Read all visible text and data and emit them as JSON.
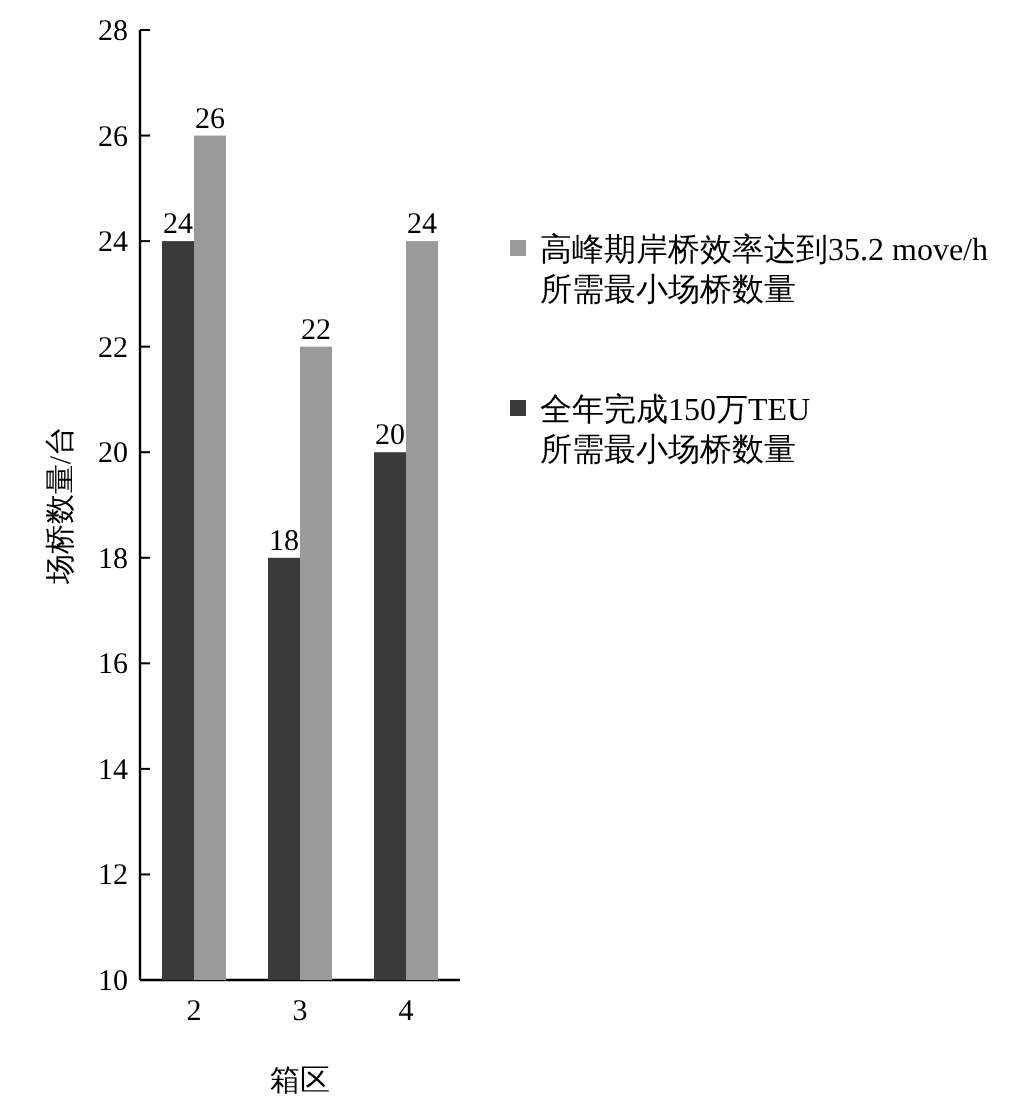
{
  "chart_data": {
    "type": "bar",
    "categories": [
      "2",
      "3",
      "4"
    ],
    "xlabel": "箱区",
    "ylabel": "场桥数量/台",
    "ylim": [
      10,
      28
    ],
    "yticks": [
      10,
      12,
      14,
      16,
      18,
      20,
      22,
      24,
      26,
      28
    ],
    "data_labels": true,
    "legend": "right",
    "series": [
      {
        "name": "全年完成150万TEU\n所需最小场桥数量",
        "color": "#3a3a3a",
        "values": [
          24,
          18,
          20
        ]
      },
      {
        "name": "高峰期岸桥效率达到35.2 move/h\n所需最小场桥数量",
        "color": "#9a9a9a",
        "values": [
          26,
          22,
          24
        ]
      }
    ]
  }
}
